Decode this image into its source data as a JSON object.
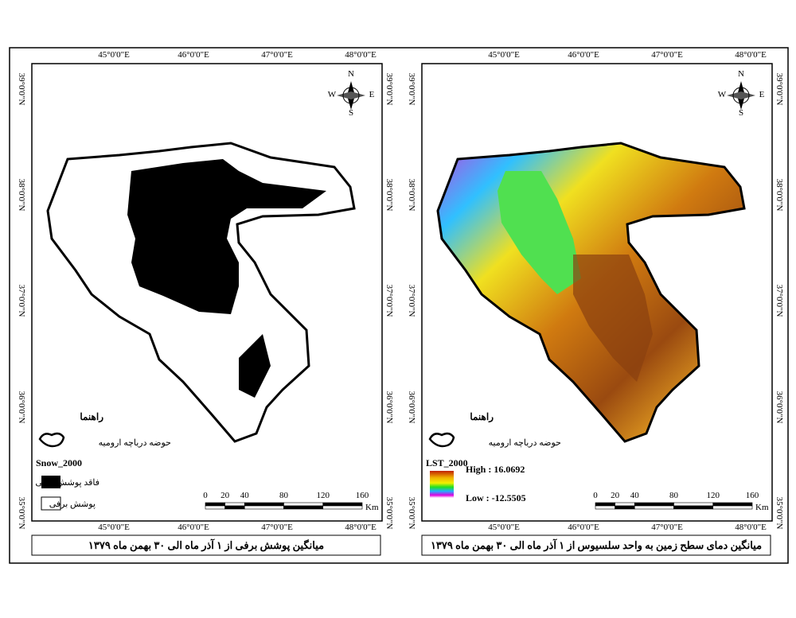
{
  "panels": [
    {
      "lon_labels": [
        "45°0'0\"E",
        "46°0'0\"E",
        "47°0'0\"E",
        "48°0'0\"E"
      ],
      "lat_labels": [
        "39°0'0\"N",
        "38°0'0\"N",
        "37°0'0\"N",
        "36°0'0\"N",
        "35°0'0\"N"
      ],
      "north": {
        "n": "N",
        "s": "S",
        "e": "E",
        "w": "W"
      },
      "legend_title": "راهنما",
      "basin_label": "حوضه دریاچه ارومیه",
      "layer_name": "Snow_2000",
      "legend_items": [
        "فاقد پوشش برفی",
        "پوشش برفی"
      ],
      "scale": {
        "ticks": [
          0,
          20,
          40,
          80,
          120,
          160
        ],
        "unit": "Km"
      },
      "caption": "میانگین پوشش برفی از ۱ آذر ماه الی ۳۰ بهمن ماه ۱۳۷۹"
    },
    {
      "lon_labels": [
        "45°0'0\"E",
        "46°0'0\"E",
        "47°0'0\"E",
        "48°0'0\"E"
      ],
      "lat_labels": [
        "39°0'0\"N",
        "38°0'0\"N",
        "37°0'0\"N",
        "36°0'0\"N",
        "35°0'0\"N"
      ],
      "north": {
        "n": "N",
        "s": "S",
        "e": "E",
        "w": "W"
      },
      "legend_title": "راهنما",
      "basin_label": "حوضه دریاچه ارومیه",
      "layer_name": "LST_2000",
      "legend_items": [
        "High : 16.0692",
        "Low : -12.5505"
      ],
      "scale": {
        "ticks": [
          0,
          20,
          40,
          80,
          120,
          160
        ],
        "unit": "Km"
      },
      "caption": "میانگین دمای سطح زمین به واحد سلسیوس از ۱ آذر ماه الی ۳۰ بهمن ماه ۱۳۷۹"
    }
  ]
}
